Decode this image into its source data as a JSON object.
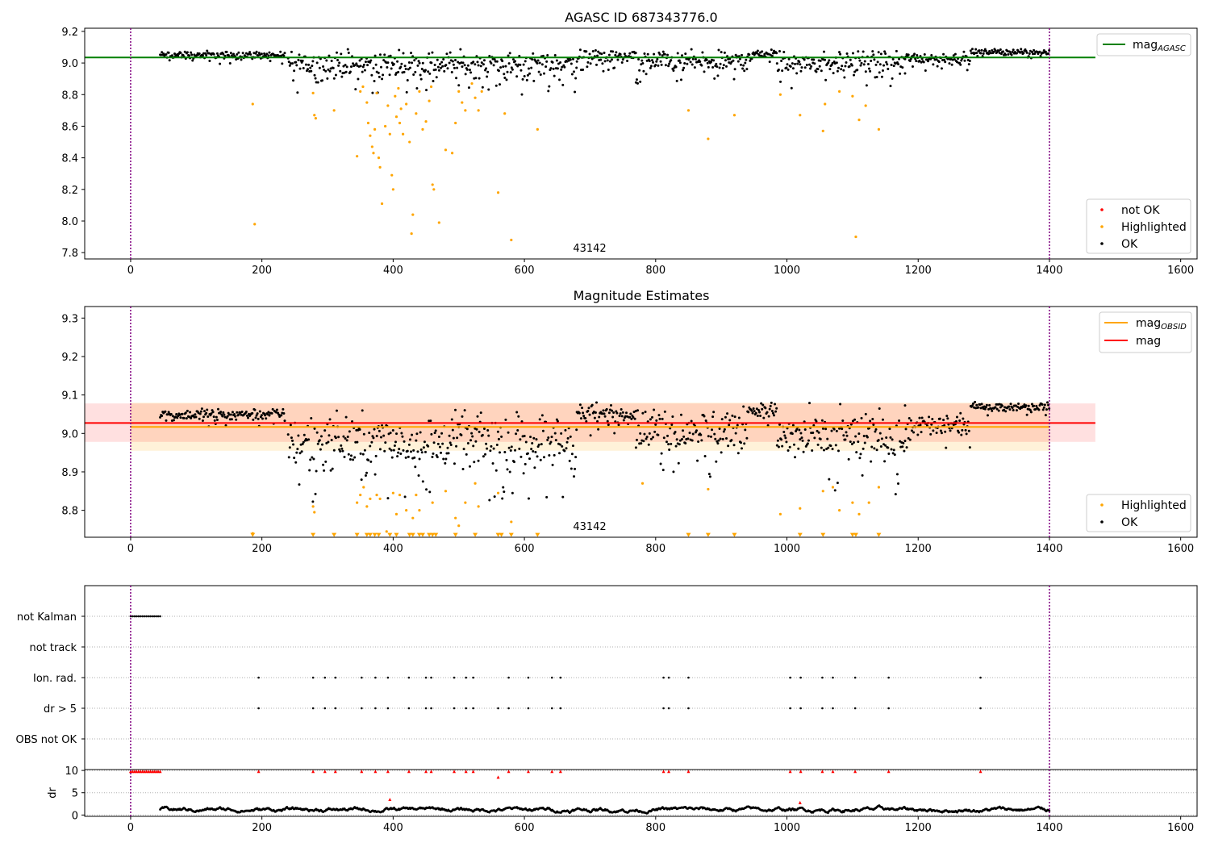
{
  "chart_data": [
    {
      "type": "scatter",
      "name": "agasc-panel",
      "title": "AGASC ID 687343776.0",
      "xlim": [
        -70,
        1625
      ],
      "ylim": [
        7.76,
        9.22
      ],
      "xticks": [
        0,
        200,
        400,
        600,
        800,
        1000,
        1200,
        1400,
        1600
      ],
      "yticks": [
        7.8,
        8.0,
        8.2,
        8.4,
        8.6,
        8.8,
        9.0,
        9.2
      ],
      "vlines": [
        0,
        1400
      ],
      "hline": {
        "label": "mag_AGASC",
        "label_main": "mag",
        "label_sub": "AGASC",
        "value": 9.035,
        "x_range": [
          -70,
          1470
        ],
        "color": "#008000"
      },
      "annotation": {
        "text": "43142",
        "x": 700,
        "y": 7.8
      },
      "legend_lines": [
        {
          "label_main": "mag",
          "label_sub": "AGASC",
          "color": "#008000"
        }
      ],
      "legend_points": [
        {
          "label": "not OK",
          "color": "#ff0000"
        },
        {
          "label": "Highlighted",
          "color": "#ffa500"
        },
        {
          "label": "OK",
          "color": "#000000"
        }
      ],
      "ok_series": {
        "label": "OK",
        "color": "#000000",
        "segments": [
          {
            "x0": 45,
            "x1": 235,
            "center": 9.05,
            "spread": 0.035
          },
          {
            "x0": 240,
            "x1": 680,
            "center": 8.99,
            "spread": 0.12
          },
          {
            "x0": 680,
            "x1": 770,
            "center": 9.04,
            "spread": 0.06
          },
          {
            "x0": 770,
            "x1": 940,
            "center": 9.01,
            "spread": 0.09
          },
          {
            "x0": 940,
            "x1": 985,
            "center": 9.06,
            "spread": 0.04
          },
          {
            "x0": 985,
            "x1": 1180,
            "center": 9.0,
            "spread": 0.11
          },
          {
            "x0": 1180,
            "x1": 1280,
            "center": 9.03,
            "spread": 0.05
          },
          {
            "x0": 1280,
            "x1": 1400,
            "center": 9.07,
            "spread": 0.025
          }
        ]
      },
      "highlighted_series": {
        "label": "Highlighted",
        "color": "#ffa500",
        "x": [
          186,
          189,
          278,
          280,
          282,
          310,
          345,
          350,
          354,
          360,
          362,
          365,
          368,
          370,
          372,
          375,
          378,
          380,
          383,
          388,
          392,
          395,
          398,
          400,
          403,
          405,
          408,
          410,
          412,
          415,
          420,
          425,
          428,
          430,
          435,
          440,
          445,
          450,
          455,
          458,
          460,
          462,
          470,
          480,
          490,
          495,
          500,
          505,
          510,
          520,
          525,
          530,
          535,
          560,
          570,
          580,
          620,
          850,
          880,
          920,
          990,
          1020,
          1055,
          1058,
          1080,
          1100,
          1105,
          1110,
          1120,
          1140
        ],
        "y": [
          8.74,
          7.98,
          8.81,
          8.67,
          8.65,
          8.7,
          8.41,
          8.82,
          8.85,
          8.75,
          8.62,
          8.54,
          8.47,
          8.43,
          8.58,
          8.81,
          8.4,
          8.34,
          8.11,
          8.6,
          8.73,
          8.55,
          8.29,
          8.2,
          8.79,
          8.66,
          8.84,
          8.62,
          8.71,
          8.55,
          8.74,
          8.5,
          7.92,
          8.04,
          8.68,
          8.82,
          8.58,
          8.63,
          8.76,
          8.85,
          8.23,
          8.2,
          7.99,
          8.45,
          8.43,
          8.62,
          8.82,
          8.75,
          8.7,
          8.87,
          8.78,
          8.7,
          8.82,
          8.18,
          8.68,
          7.88,
          8.58,
          8.7,
          8.52,
          8.67,
          8.8,
          8.67,
          8.57,
          8.74,
          8.82,
          8.79,
          7.9,
          8.64,
          8.73,
          8.58
        ]
      }
    },
    {
      "type": "scatter",
      "name": "magnitude-panel",
      "title": "Magnitude Estimates",
      "xlim": [
        -70,
        1625
      ],
      "ylim": [
        8.73,
        9.33
      ],
      "xticks": [
        0,
        200,
        400,
        600,
        800,
        1000,
        1200,
        1400,
        1600
      ],
      "yticks": [
        8.8,
        8.9,
        9.0,
        9.1,
        9.2,
        9.3
      ],
      "vlines": [
        0,
        1400
      ],
      "annotation": {
        "text": "43142",
        "x": 700,
        "y": 8.76
      },
      "bands": [
        {
          "label": "mag_OBSID band",
          "x_range": [
            0,
            1400
          ],
          "y_range": [
            8.955,
            9.08
          ],
          "color": "#ffa500",
          "opacity": 0.15
        },
        {
          "label": "mag band",
          "x_range": [
            -70,
            1470
          ],
          "y_range": [
            8.978,
            9.078
          ],
          "color": "#ff0000",
          "opacity": 0.12
        }
      ],
      "lines": [
        {
          "label_main": "mag",
          "label_sub": "OBSID",
          "value": 9.017,
          "x_range": [
            0,
            1400
          ],
          "color": "#ffa500"
        },
        {
          "label_main": "mag",
          "label_sub": "",
          "value": 9.027,
          "x_range": [
            -70,
            1470
          ],
          "color": "#ff0000"
        }
      ],
      "legend_points": [
        {
          "label": "Highlighted",
          "color": "#ffa500"
        },
        {
          "label": "OK",
          "color": "#000000"
        }
      ],
      "ok_series": {
        "label": "OK",
        "color": "#000000",
        "segments": [
          {
            "x0": 45,
            "x1": 235,
            "center": 9.05,
            "spread": 0.02
          },
          {
            "x0": 240,
            "x1": 680,
            "center": 8.98,
            "spread": 0.1
          },
          {
            "x0": 680,
            "x1": 770,
            "center": 9.05,
            "spread": 0.04
          },
          {
            "x0": 770,
            "x1": 940,
            "center": 9.01,
            "spread": 0.08
          },
          {
            "x0": 940,
            "x1": 985,
            "center": 9.06,
            "spread": 0.03
          },
          {
            "x0": 985,
            "x1": 1180,
            "center": 8.99,
            "spread": 0.1
          },
          {
            "x0": 1180,
            "x1": 1280,
            "center": 9.02,
            "spread": 0.04
          },
          {
            "x0": 1280,
            "x1": 1400,
            "center": 9.07,
            "spread": 0.015
          }
        ]
      },
      "highlighted_series": {
        "label": "Highlighted",
        "color": "#ffa500",
        "x": [
          186,
          278,
          280,
          345,
          350,
          355,
          360,
          365,
          375,
          380,
          390,
          400,
          405,
          410,
          420,
          430,
          435,
          440,
          460,
          480,
          495,
          500,
          510,
          525,
          530,
          560,
          580,
          780,
          880,
          990,
          1020,
          1055,
          1070,
          1080,
          1100,
          1110,
          1125,
          1140
        ],
        "y": [
          8.74,
          8.81,
          8.795,
          8.82,
          8.84,
          8.86,
          8.81,
          8.83,
          8.84,
          8.83,
          8.745,
          8.845,
          8.79,
          8.84,
          8.8,
          8.78,
          8.84,
          8.8,
          8.82,
          8.85,
          8.78,
          8.76,
          8.82,
          8.87,
          8.81,
          8.845,
          8.77,
          8.87,
          8.855,
          8.79,
          8.805,
          8.85,
          8.86,
          8.8,
          8.82,
          8.79,
          8.82,
          8.86
        ]
      },
      "clipped_markers": {
        "label": "below-range markers",
        "color": "#ffa500",
        "y": 8.735,
        "x": [
          186,
          278,
          310,
          345,
          360,
          365,
          372,
          378,
          395,
          405,
          425,
          430,
          440,
          445,
          455,
          460,
          465,
          495,
          525,
          560,
          565,
          580,
          620,
          850,
          880,
          920,
          1020,
          1055,
          1100,
          1105,
          1140
        ]
      }
    },
    {
      "type": "scatter",
      "name": "flags-panel",
      "xlim": [
        -70,
        1625
      ],
      "ylim": [
        0,
        5
      ],
      "xticks": [
        0,
        200,
        400,
        600,
        800,
        1000,
        1200,
        1400,
        1600
      ],
      "yticks": [
        4,
        3,
        2,
        1,
        0
      ],
      "yticklabels": [
        "not Kalman",
        "not track",
        "Ion. rad.",
        "dr > 5",
        "OBS not OK"
      ],
      "vlines": [
        0,
        1400
      ],
      "flag_rows": [
        {
          "label": "not Kalman",
          "x": [
            0,
            3,
            6,
            9,
            12,
            15,
            18,
            21,
            24,
            27,
            30,
            33,
            36,
            39,
            42,
            45
          ]
        },
        {
          "label": "not track",
          "x": []
        },
        {
          "label": "Ion. rad.",
          "x": [
            195,
            278,
            296,
            312,
            352,
            373,
            392,
            424,
            450,
            458,
            493,
            511,
            522,
            576,
            606,
            642,
            655,
            812,
            820,
            850,
            1005,
            1021,
            1054,
            1070,
            1104,
            1155,
            1295
          ]
        },
        {
          "label": "dr > 5",
          "x": [
            195,
            278,
            296,
            312,
            352,
            373,
            392,
            424,
            450,
            458,
            493,
            511,
            522,
            560,
            576,
            606,
            642,
            655,
            812,
            820,
            850,
            1005,
            1021,
            1054,
            1070,
            1104,
            1155,
            1295
          ]
        },
        {
          "label": "OBS not OK",
          "x": []
        }
      ]
    },
    {
      "type": "scatter",
      "name": "dr-panel",
      "xlim": [
        -70,
        1625
      ],
      "ylim": [
        -0.3,
        10.2
      ],
      "xticks": [
        0,
        200,
        400,
        600,
        800,
        1000,
        1200,
        1400,
        1600
      ],
      "xticklabels": [
        "0",
        "200",
        "400",
        "600",
        "800",
        "1000",
        "1200",
        "1400",
        "1600"
      ],
      "yticks": [
        0,
        5,
        10
      ],
      "ylabel": "dr",
      "vlines": [
        0,
        1400
      ],
      "ok_series": {
        "label": "OK",
        "color": "#000000",
        "x_range": [
          45,
          1400
        ],
        "center": 1.2,
        "spread": 0.8
      },
      "red_series": {
        "label": "not OK",
        "color": "#ff0000",
        "x": [
          0,
          3,
          6,
          9,
          12,
          15,
          18,
          21,
          24,
          27,
          30,
          33,
          36,
          39,
          42,
          45,
          195,
          278,
          296,
          312,
          352,
          373,
          392,
          424,
          450,
          458,
          493,
          511,
          522,
          560,
          576,
          606,
          642,
          655,
          812,
          820,
          850,
          1005,
          1021,
          1054,
          1070,
          1104,
          1155,
          1295,
          395,
          1020
        ],
        "y": [
          9.8,
          9.8,
          9.8,
          9.8,
          9.8,
          9.8,
          9.8,
          9.8,
          9.8,
          9.8,
          9.8,
          9.8,
          9.8,
          9.8,
          9.8,
          9.8,
          9.8,
          9.8,
          9.8,
          9.8,
          9.8,
          9.8,
          9.8,
          9.8,
          9.8,
          9.8,
          9.8,
          9.8,
          9.8,
          8.5,
          9.8,
          9.8,
          9.8,
          9.8,
          9.8,
          9.8,
          9.8,
          9.8,
          9.8,
          9.8,
          9.8,
          9.8,
          9.8,
          9.8,
          3.5,
          2.8
        ]
      }
    }
  ]
}
